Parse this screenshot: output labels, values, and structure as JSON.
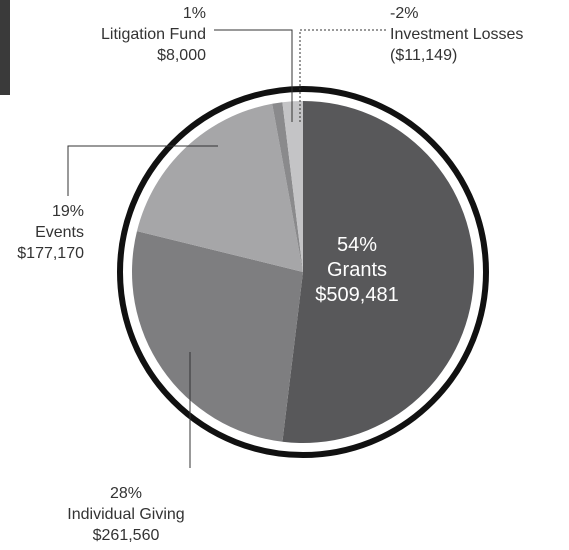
{
  "chart_data": {
    "type": "pie",
    "categories": [
      "Grants",
      "Individual Giving",
      "Events",
      "Litigation Fund",
      "Investment Losses"
    ],
    "values": [
      54,
      28,
      19,
      1,
      -2
    ],
    "value_labels": [
      "54%",
      "28%",
      "19%",
      "1%",
      "-2%"
    ],
    "amount_labels": [
      "$509,481",
      "$261,560",
      "$177,170",
      "$8,000",
      "($11,149)"
    ],
    "colors": [
      "#58585a",
      "#7e7e80",
      "#a6a6a8",
      "#8a8a8c",
      "#c4c4c6"
    ]
  }
}
